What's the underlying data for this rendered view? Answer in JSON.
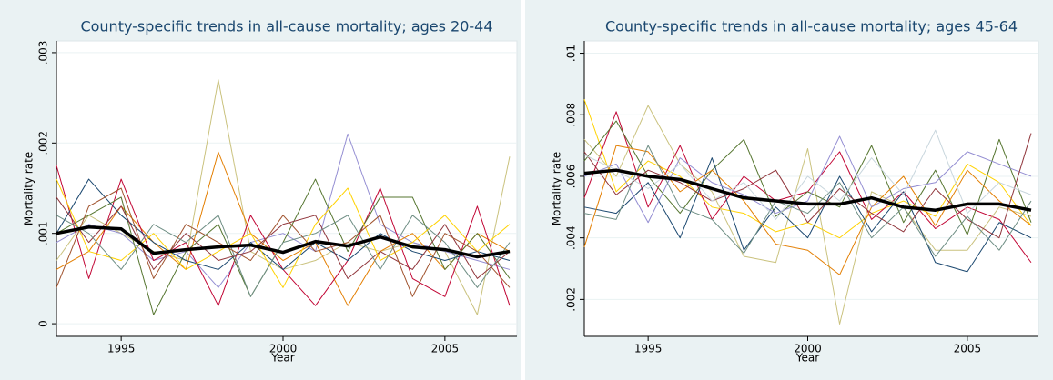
{
  "chart_data": [
    {
      "type": "line",
      "title": "County-specific trends in all-cause mortality; ages 20-44",
      "xlabel": "Year",
      "ylabel": "Mortality rate",
      "x": [
        1993,
        1994,
        1995,
        1996,
        1997,
        1998,
        1999,
        2000,
        2001,
        2002,
        2003,
        2004,
        2005,
        2006,
        2007
      ],
      "xlim": [
        1993,
        2007
      ],
      "ylim": [
        -0.00014,
        0.00313
      ],
      "xticks": [
        1995,
        2000,
        2005
      ],
      "yticks": [
        0,
        {
          "value": 0.001,
          "label": ".001"
        },
        {
          "value": 0.002,
          "label": ".002"
        },
        {
          "value": 0.003,
          "label": ".003"
        }
      ],
      "grid": true,
      "series": [
        {
          "color": "#cac27e",
          "values": [
            0.0007,
            0.0012,
            0.001,
            0.0008,
            0.0007,
            0.0027,
            0.0008,
            0.0006,
            0.0007,
            0.0009,
            0.0008,
            0.0009,
            0.0008,
            0.0001,
            0.00185
          ]
        },
        {
          "color": "#938dd2",
          "values": [
            0.0009,
            0.0011,
            0.001,
            0.0007,
            0.0008,
            0.0004,
            0.0009,
            0.001,
            0.0008,
            0.0021,
            0.0011,
            0.0009,
            0.0008,
            0.0007,
            0.0006
          ]
        },
        {
          "color": "#e37e00",
          "values": [
            0.0006,
            0.0008,
            0.0013,
            0.0009,
            0.0006,
            0.0019,
            0.001,
            0.0007,
            0.0009,
            0.0002,
            0.0008,
            0.001,
            0.0006,
            0.001,
            0.0008
          ]
        },
        {
          "color": "#c10534",
          "values": [
            0.00175,
            0.0005,
            0.0016,
            0.0007,
            0.0009,
            0.0002,
            0.0012,
            0.0006,
            0.0002,
            0.0007,
            0.0015,
            0.0005,
            0.0003,
            0.0013,
            0.0002
          ]
        },
        {
          "color": "#55752f",
          "values": [
            0.001,
            0.0012,
            0.0014,
            0.0001,
            0.0008,
            0.0011,
            0.0003,
            0.0009,
            0.0016,
            0.0008,
            0.0014,
            0.0014,
            0.0006,
            0.001,
            0.0005
          ]
        },
        {
          "color": "#1a476f",
          "values": [
            0.001,
            0.0016,
            0.0012,
            0.0009,
            0.0007,
            0.0006,
            0.0009,
            0.0006,
            0.0009,
            0.0007,
            0.001,
            0.0008,
            0.0007,
            0.0008,
            0.0007
          ]
        },
        {
          "color": "#90353b",
          "values": [
            0.0014,
            0.0009,
            0.0013,
            0.0006,
            0.001,
            0.0007,
            0.0008,
            0.0011,
            0.0012,
            0.0005,
            0.0008,
            0.0006,
            0.0011,
            0.0005,
            0.0008
          ]
        },
        {
          "color": "#ffd200",
          "values": [
            0.0016,
            0.0008,
            0.0007,
            0.001,
            0.0006,
            0.0008,
            0.001,
            0.0004,
            0.0011,
            0.0015,
            0.0007,
            0.0009,
            0.0012,
            0.0008,
            0.0011
          ]
        },
        {
          "color": "#6e8e84",
          "values": [
            0.0012,
            0.001,
            0.0006,
            0.0011,
            0.0009,
            0.0012,
            0.0003,
            0.0009,
            0.001,
            0.0012,
            0.0006,
            0.0012,
            0.0009,
            0.0004,
            0.0009
          ]
        },
        {
          "color": "#a0522d",
          "values": [
            0.0004,
            0.0013,
            0.0015,
            0.0005,
            0.0011,
            0.0009,
            0.0007,
            0.0012,
            0.0008,
            0.0009,
            0.0012,
            0.0003,
            0.001,
            0.0008,
            0.0004
          ]
        },
        {
          "color": "#000000",
          "width": 3.5,
          "values": [
            0.001,
            0.00107,
            0.00105,
            0.00078,
            0.00082,
            0.00085,
            0.00087,
            0.00079,
            0.00091,
            0.00086,
            0.00096,
            0.00085,
            0.00082,
            0.00074,
            0.0008
          ]
        }
      ]
    },
    {
      "type": "line",
      "title": "County-specific trends in all-cause mortality; ages 45-64",
      "xlabel": "Year",
      "ylabel": "Mortality rate",
      "x": [
        1993,
        1994,
        1995,
        1996,
        1997,
        1998,
        1999,
        2000,
        2001,
        2002,
        2003,
        2004,
        2005,
        2006,
        2007
      ],
      "xlim": [
        1993,
        2007
      ],
      "ylim": [
        0.0008,
        0.0104
      ],
      "xticks": [
        1995,
        2000,
        2005
      ],
      "yticks": [
        {
          "value": 0.002,
          "label": ".002"
        },
        {
          "value": 0.004,
          "label": ".004"
        },
        {
          "value": 0.006,
          "label": ".006"
        },
        {
          "value": 0.008,
          "label": ".008"
        },
        {
          "value": 0.01,
          "label": ".01"
        }
      ],
      "grid": true,
      "series": [
        {
          "color": "#ffd200",
          "values": [
            0.0085,
            0.0055,
            0.0065,
            0.006,
            0.005,
            0.0048,
            0.0042,
            0.0045,
            0.004,
            0.0048,
            0.0052,
            0.0047,
            0.0064,
            0.0058,
            0.0044
          ]
        },
        {
          "color": "#c10534",
          "values": [
            0.0053,
            0.0081,
            0.005,
            0.007,
            0.0046,
            0.006,
            0.0052,
            0.0055,
            0.0068,
            0.0046,
            0.0055,
            0.0043,
            0.005,
            0.0046,
            0.0032
          ]
        },
        {
          "color": "#cac27e",
          "values": [
            0.0072,
            0.006,
            0.0083,
            0.0064,
            0.0055,
            0.0034,
            0.0032,
            0.0069,
            0.0012,
            0.0055,
            0.005,
            0.0036,
            0.0036,
            0.005,
            0.0047
          ]
        },
        {
          "color": "#55752f",
          "values": [
            0.0065,
            0.0078,
            0.006,
            0.0048,
            0.0062,
            0.0072,
            0.0047,
            0.0055,
            0.005,
            0.007,
            0.0045,
            0.0062,
            0.0041,
            0.0072,
            0.0045
          ]
        },
        {
          "color": "#1a476f",
          "values": [
            0.005,
            0.0048,
            0.0058,
            0.004,
            0.0066,
            0.0036,
            0.005,
            0.004,
            0.006,
            0.0042,
            0.0055,
            0.0032,
            0.0029,
            0.0045,
            0.004
          ]
        },
        {
          "color": "#e37e00",
          "values": [
            0.0037,
            0.007,
            0.0068,
            0.0055,
            0.0062,
            0.0052,
            0.0038,
            0.0036,
            0.0028,
            0.005,
            0.006,
            0.0044,
            0.0062,
            0.0052,
            0.0044
          ]
        },
        {
          "color": "#938dd2",
          "values": [
            0.006,
            0.0064,
            0.0045,
            0.0066,
            0.0058,
            0.0054,
            0.0048,
            0.0052,
            0.0073,
            0.005,
            0.0056,
            0.0058,
            0.0068,
            0.0064,
            0.006
          ]
        },
        {
          "color": "#90353b",
          "values": [
            0.0068,
            0.0054,
            0.0062,
            0.0058,
            0.0052,
            0.0056,
            0.0062,
            0.0045,
            0.0056,
            0.0048,
            0.0042,
            0.0056,
            0.0046,
            0.004,
            0.0074
          ]
        },
        {
          "color": "#6e8e84",
          "values": [
            0.0048,
            0.0046,
            0.007,
            0.005,
            0.0046,
            0.0035,
            0.0052,
            0.0048,
            0.0058,
            0.004,
            0.005,
            0.0034,
            0.0047,
            0.0036,
            0.0052
          ]
        },
        {
          "color": "#c8d6dd",
          "values": [
            0.0067,
            0.0062,
            0.0056,
            0.0064,
            0.0052,
            0.0058,
            0.0046,
            0.006,
            0.0052,
            0.0066,
            0.0054,
            0.0075,
            0.0048,
            0.0058,
            0.0054
          ]
        },
        {
          "color": "#000000",
          "width": 3.5,
          "values": [
            0.0061,
            0.0062,
            0.006,
            0.0059,
            0.0056,
            0.0053,
            0.0052,
            0.0051,
            0.0051,
            0.0053,
            0.005,
            0.0049,
            0.0051,
            0.0051,
            0.0049
          ]
        }
      ]
    }
  ]
}
